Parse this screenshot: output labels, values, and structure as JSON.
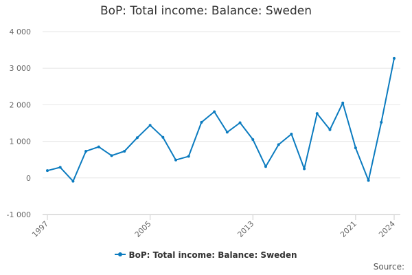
{
  "chart_data": {
    "type": "line",
    "title": "BoP: Total income: Balance: Sweden",
    "x": [
      1997,
      1998,
      1999,
      2000,
      2001,
      2002,
      2003,
      2004,
      2005,
      2006,
      2007,
      2008,
      2009,
      2010,
      2011,
      2012,
      2013,
      2014,
      2015,
      2016,
      2017,
      2018,
      2019,
      2020,
      2021,
      2022,
      2023,
      2024
    ],
    "series": [
      {
        "name": "BoP: Total income: Balance: Sweden",
        "color": "#0b7bbf",
        "values": [
          200,
          290,
          -90,
          730,
          850,
          610,
          730,
          1100,
          1440,
          1110,
          490,
          590,
          1520,
          1810,
          1250,
          1510,
          1050,
          310,
          910,
          1200,
          250,
          1760,
          1320,
          2050,
          820,
          -70,
          1520,
          3270
        ]
      }
    ],
    "xticks": [
      "1997",
      "2005",
      "2013",
      "2021",
      "2024"
    ],
    "yticks": [
      "-1 000",
      "0",
      "1 000",
      "2 000",
      "3 000",
      "4 000"
    ],
    "ytick_values": [
      -1000,
      0,
      1000,
      2000,
      3000,
      4000
    ],
    "ylim": [
      -1000,
      4000
    ],
    "xlabel": "",
    "ylabel": "",
    "grid": "horizontal",
    "legend_position": "bottom"
  },
  "source_label": "Source:"
}
